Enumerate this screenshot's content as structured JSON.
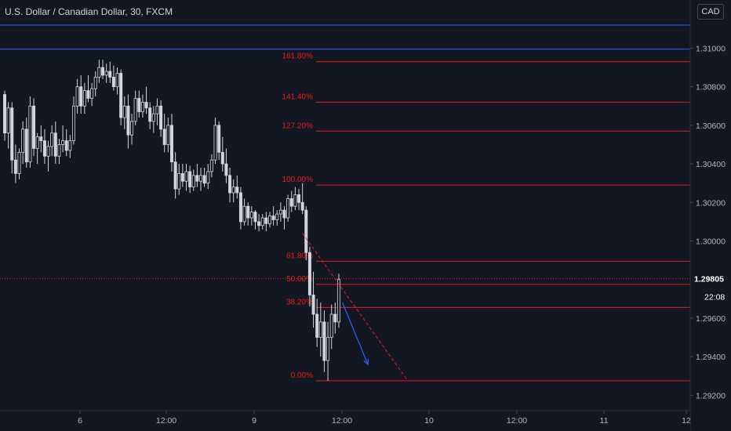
{
  "header": {
    "title": "U.S. Dollar / Canadian Dollar, 30, FXCM",
    "currency_button": "CAD"
  },
  "colors": {
    "background": "#131722",
    "candle": "#d1d4dc",
    "fib": "#e81c1c",
    "horizontal_line": "#2962ff",
    "projection_arrow": "#2962ff",
    "axis_text": "#b2b5be",
    "grid": "#1e222d"
  },
  "chart_data": {
    "type": "candlestick",
    "symbol": "U.S. Dollar / Canadian Dollar",
    "timeframe": "30",
    "source": "FXCM",
    "price_axis": {
      "min": 1.2912,
      "max": 1.3125,
      "tick_labels": [
        "1.31000",
        "1.30800",
        "1.30600",
        "1.30400",
        "1.30200",
        "1.30000",
        "1.29600",
        "1.29400",
        "1.29200"
      ]
    },
    "time_axis": {
      "tick_labels": [
        "6",
        "12:00",
        "9",
        "12:00",
        "10",
        "12:00",
        "11",
        "12"
      ]
    },
    "current_price": {
      "value": 1.29805,
      "label": "1.29805",
      "countdown": "22:08"
    },
    "horizontal_lines": [
      1.3112,
      1.30995
    ],
    "fibonacci": {
      "levels": [
        {
          "label": "161.80%",
          "price": 1.3093
        },
        {
          "label": "141.40%",
          "price": 1.3072
        },
        {
          "label": "127.20%",
          "price": 1.3057
        },
        {
          "label": "100.00%",
          "price": 1.3029
        },
        {
          "label": "61.80%",
          "price": 1.29895
        },
        {
          "label": "50.00%",
          "price": 1.29775
        },
        {
          "label": "38.20%",
          "price": 1.29655
        },
        {
          "label": "0.00%",
          "price": 1.29275
        }
      ]
    },
    "candles": [
      [
        1.3076,
        1.3078,
        1.3052,
        1.3056
      ],
      [
        1.3056,
        1.3072,
        1.3048,
        1.3069
      ],
      [
        1.3069,
        1.3072,
        1.3035,
        1.3042
      ],
      [
        1.3042,
        1.305,
        1.303,
        1.3035
      ],
      [
        1.3035,
        1.3048,
        1.3032,
        1.3046
      ],
      [
        1.3046,
        1.3062,
        1.304,
        1.3058
      ],
      [
        1.3058,
        1.3064,
        1.3038,
        1.3041
      ],
      [
        1.3041,
        1.3075,
        1.3038,
        1.307
      ],
      [
        1.307,
        1.3074,
        1.3044,
        1.3048
      ],
      [
        1.3048,
        1.3056,
        1.304,
        1.3054
      ],
      [
        1.3054,
        1.306,
        1.3046,
        1.3052
      ],
      [
        1.3052,
        1.3058,
        1.304,
        1.3044
      ],
      [
        1.3044,
        1.3052,
        1.3036,
        1.3049
      ],
      [
        1.3049,
        1.306,
        1.3044,
        1.3056
      ],
      [
        1.3056,
        1.3062,
        1.304,
        1.3044
      ],
      [
        1.3044,
        1.3053,
        1.304,
        1.305
      ],
      [
        1.305,
        1.306,
        1.3046,
        1.3052
      ],
      [
        1.3052,
        1.3058,
        1.3044,
        1.3047
      ],
      [
        1.3047,
        1.3055,
        1.3043,
        1.3052
      ],
      [
        1.3052,
        1.3075,
        1.305,
        1.307
      ],
      [
        1.307,
        1.3084,
        1.3066,
        1.308
      ],
      [
        1.308,
        1.3086,
        1.3066,
        1.307
      ],
      [
        1.307,
        1.3082,
        1.3066,
        1.3078
      ],
      [
        1.3078,
        1.3086,
        1.3072,
        1.3074
      ],
      [
        1.3074,
        1.3082,
        1.307,
        1.3079
      ],
      [
        1.3079,
        1.3088,
        1.3075,
        1.3085
      ],
      [
        1.3085,
        1.3094,
        1.3082,
        1.309
      ],
      [
        1.309,
        1.3094,
        1.3084,
        1.3086
      ],
      [
        1.3086,
        1.3092,
        1.3082,
        1.3088
      ],
      [
        1.3088,
        1.3093,
        1.3082,
        1.3085
      ],
      [
        1.3085,
        1.3091,
        1.3078,
        1.308
      ],
      [
        1.308,
        1.309,
        1.3076,
        1.3087
      ],
      [
        1.3087,
        1.3089,
        1.306,
        1.3064
      ],
      [
        1.3064,
        1.3075,
        1.3058,
        1.307
      ],
      [
        1.307,
        1.3076,
        1.3048,
        1.3055
      ],
      [
        1.3055,
        1.3066,
        1.305,
        1.3062
      ],
      [
        1.3062,
        1.3078,
        1.306,
        1.3074
      ],
      [
        1.3074,
        1.3078,
        1.3064,
        1.3067
      ],
      [
        1.3067,
        1.3076,
        1.3064,
        1.3072
      ],
      [
        1.3072,
        1.308,
        1.3066,
        1.3069
      ],
      [
        1.3069,
        1.3072,
        1.3058,
        1.3062
      ],
      [
        1.3062,
        1.307,
        1.3056,
        1.3066
      ],
      [
        1.3066,
        1.3074,
        1.306,
        1.307
      ],
      [
        1.307,
        1.3073,
        1.3054,
        1.3058
      ],
      [
        1.3058,
        1.3066,
        1.3046,
        1.305
      ],
      [
        1.305,
        1.3064,
        1.3046,
        1.306
      ],
      [
        1.306,
        1.3066,
        1.3036,
        1.3041
      ],
      [
        1.3041,
        1.3046,
        1.3022,
        1.3027
      ],
      [
        1.3027,
        1.304,
        1.3024,
        1.3035
      ],
      [
        1.3035,
        1.304,
        1.3028,
        1.3031
      ],
      [
        1.3031,
        1.304,
        1.3026,
        1.3036
      ],
      [
        1.3036,
        1.3039,
        1.3025,
        1.3028
      ],
      [
        1.3028,
        1.3037,
        1.3026,
        1.3034
      ],
      [
        1.3034,
        1.304,
        1.3028,
        1.3031
      ],
      [
        1.3031,
        1.3038,
        1.3026,
        1.3034
      ],
      [
        1.3034,
        1.3038,
        1.3028,
        1.303
      ],
      [
        1.303,
        1.304,
        1.3027,
        1.3036
      ],
      [
        1.3036,
        1.3045,
        1.3033,
        1.3042
      ],
      [
        1.3042,
        1.3064,
        1.304,
        1.306
      ],
      [
        1.306,
        1.3062,
        1.3042,
        1.3046
      ],
      [
        1.3046,
        1.3054,
        1.3036,
        1.304
      ],
      [
        1.304,
        1.3048,
        1.303,
        1.3034
      ],
      [
        1.3034,
        1.3038,
        1.302,
        1.3025
      ],
      [
        1.3025,
        1.3032,
        1.302,
        1.3028
      ],
      [
        1.3028,
        1.3034,
        1.3022,
        1.3025
      ],
      [
        1.3025,
        1.3028,
        1.3006,
        1.301
      ],
      [
        1.301,
        1.3022,
        1.3008,
        1.3018
      ],
      [
        1.3018,
        1.302,
        1.3008,
        1.3012
      ],
      [
        1.3012,
        1.3018,
        1.3008,
        1.3015
      ],
      [
        1.3015,
        1.3016,
        1.3006,
        1.301
      ],
      [
        1.301,
        1.3014,
        1.3005,
        1.3008
      ],
      [
        1.3008,
        1.3014,
        1.3006,
        1.3012
      ],
      [
        1.3012,
        1.3015,
        1.3005,
        1.3009
      ],
      [
        1.3009,
        1.3015,
        1.3007,
        1.3013
      ],
      [
        1.3013,
        1.3018,
        1.3008,
        1.3011
      ],
      [
        1.3011,
        1.3016,
        1.3008,
        1.3014
      ],
      [
        1.3014,
        1.302,
        1.301,
        1.3016
      ],
      [
        1.3016,
        1.3018,
        1.3006,
        1.3012
      ],
      [
        1.3012,
        1.3024,
        1.301,
        1.3022
      ],
      [
        1.3022,
        1.3026,
        1.3015,
        1.3018
      ],
      [
        1.3018,
        1.3028,
        1.3016,
        1.3024
      ],
      [
        1.3024,
        1.3027,
        1.3016,
        1.302
      ],
      [
        1.302,
        1.303,
        1.3014,
        1.3016
      ],
      [
        1.3016,
        1.3018,
        1.299,
        1.2994
      ],
      [
        1.2994,
        1.2997,
        1.2966,
        1.2972
      ],
      [
        1.2972,
        1.2984,
        1.2955,
        1.2962
      ],
      [
        1.2962,
        1.297,
        1.2945,
        1.295
      ],
      [
        1.295,
        1.2968,
        1.294,
        1.2958
      ],
      [
        1.2958,
        1.2964,
        1.2932,
        1.2938
      ],
      [
        1.2938,
        1.2958,
        1.29275,
        1.295
      ],
      [
        1.295,
        1.2967,
        1.2944,
        1.2962
      ],
      [
        1.2962,
        1.2968,
        1.2952,
        1.2958
      ],
      [
        1.2958,
        1.2983,
        1.2955,
        1.298
      ]
    ],
    "fib_anchor": {
      "high_index": 82,
      "low_index": 89
    },
    "projections": {
      "dashed_trend": {
        "from_index": 82,
        "from_price": 1.3004,
        "to_index": 111,
        "to_price": 1.29275
      },
      "arrow": {
        "from_index": 93,
        "from_price": 1.2968,
        "to_index": 100,
        "to_price": 1.2936
      }
    }
  }
}
